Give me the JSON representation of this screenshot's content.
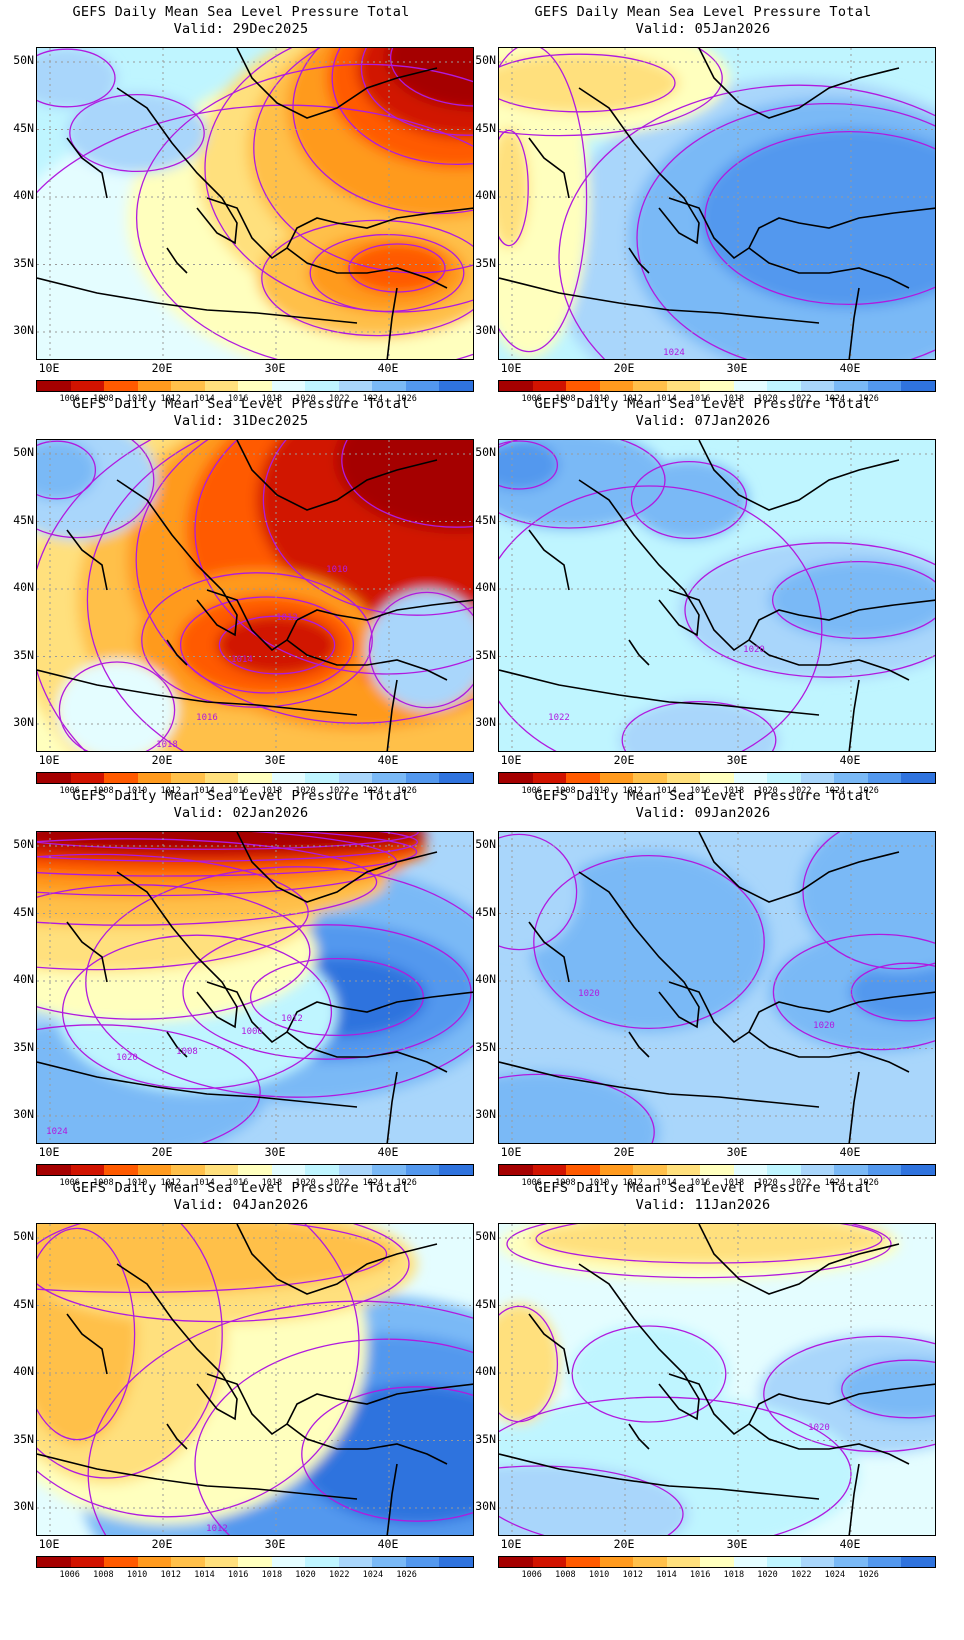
{
  "palette": [
    "#a50000",
    "#d11300",
    "#ff5a00",
    "#ff9a1e",
    "#ffc04a",
    "#ffe07d",
    "#ffffbe",
    "#e4fdff",
    "#bff5ff",
    "#a9d6fb",
    "#7ab9f6",
    "#5398ee",
    "#2f73de"
  ],
  "colorbar_labels": [
    "1006",
    "1008",
    "1010",
    "1012",
    "1014",
    "1016",
    "1018",
    "1020",
    "1022",
    "1024",
    "1026"
  ],
  "lat_labels": [
    "50N",
    "45N",
    "40N",
    "35N",
    "30N"
  ],
  "lon_labels": [
    "10E",
    "20E",
    "30E",
    "40E"
  ],
  "panels": [
    {
      "title": "GEFS Daily Mean Sea Level Pressure Total",
      "valid": "Valid: 29Dec2025",
      "contour_labels": []
    },
    {
      "title": "GEFS Daily Mean Sea Level Pressure Total",
      "valid": "Valid: 05Jan2026",
      "contour_labels": [
        "1024"
      ]
    },
    {
      "title": "GEFS Daily Mean Sea Level Pressure Total",
      "valid": "Valid: 31Dec2025",
      "contour_labels": [
        "1018",
        "1016",
        "1014",
        "1012",
        "1010"
      ]
    },
    {
      "title": "GEFS Daily Mean Sea Level Pressure Total",
      "valid": "Valid: 07Jan2026",
      "contour_labels": [
        "1022",
        "1020"
      ]
    },
    {
      "title": "GEFS Daily Mean Sea Level Pressure Total",
      "valid": "Valid: 02Jan2026",
      "contour_labels": [
        "1008",
        "1006",
        "1012",
        "1024",
        "1020"
      ]
    },
    {
      "title": "GEFS Daily Mean Sea Level Pressure Total",
      "valid": "Valid: 09Jan2026",
      "contour_labels": [
        "1020",
        "1020"
      ]
    },
    {
      "title": "GEFS Daily Mean Sea Level Pressure Total",
      "valid": "Valid: 04Jan2026",
      "contour_labels": [
        "1012"
      ]
    },
    {
      "title": "GEFS Daily Mean Sea Level Pressure Total",
      "valid": "Valid: 11Jan2026",
      "contour_labels": [
        "1020"
      ]
    }
  ]
}
